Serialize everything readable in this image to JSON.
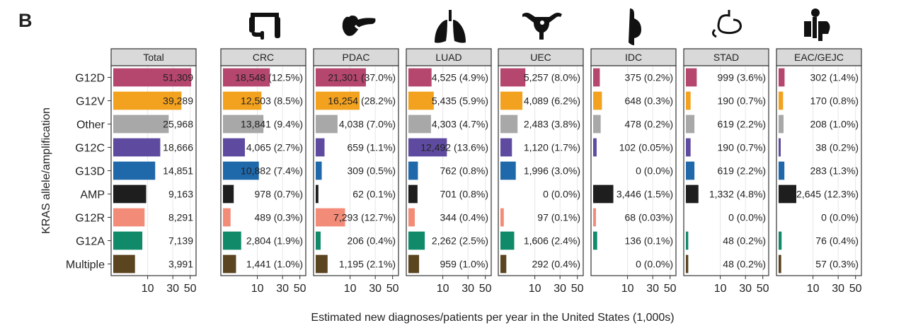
{
  "panel_letter": "B",
  "chart_data": {
    "type": "bar",
    "orientation": "horizontal",
    "xlabel": "Estimated new diagnoses/patients per year in the United States (1,000s)",
    "ylabel": "KRAS allele/amplification",
    "x_scale": "sqrt",
    "xlim": [
      0,
      55
    ],
    "x_ticks": [
      10,
      30,
      50
    ],
    "grid": true,
    "categories": [
      "G12D",
      "G12V",
      "Other",
      "G12C",
      "G13D",
      "AMP",
      "G12R",
      "G12A",
      "Multiple"
    ],
    "category_colors": [
      "#B5466E",
      "#F3A21F",
      "#A8A8A8",
      "#5E4BA0",
      "#1F68AA",
      "#1E1E1E",
      "#F28B78",
      "#118A6A",
      "#5B4420"
    ],
    "panels": [
      {
        "name": "Total",
        "icon": "",
        "values": [
          51.309,
          39.289,
          25.968,
          18.666,
          14.851,
          9.163,
          8.291,
          7.139,
          3.991
        ],
        "labels": [
          "51,309",
          "39,289",
          "25,968",
          "18,666",
          "14,851",
          "9,163",
          "8,291",
          "7,139",
          "3,991"
        ]
      },
      {
        "name": "CRC",
        "icon": "colon-icon",
        "values": [
          18.548,
          12.503,
          13.841,
          4.065,
          10.882,
          0.978,
          0.489,
          2.804,
          1.441
        ],
        "labels": [
          "18,548 (12.5%)",
          "12,503 (8.5%)",
          "13,841 (9.4%)",
          "4,065 (2.7%)",
          "10,882 (7.4%)",
          "978 (0.7%)",
          "489 (0.3%)",
          "2,804 (1.9%)",
          "1,441 (1.0%)"
        ]
      },
      {
        "name": "PDAC",
        "icon": "pancreas-icon",
        "values": [
          21.301,
          16.254,
          4.038,
          0.659,
          0.309,
          0.062,
          7.293,
          0.206,
          1.195
        ],
        "labels": [
          "21,301 (37.0%)",
          "16,254 (28.2%)",
          "4,038 (7.0%)",
          "659 (1.1%)",
          "309 (0.5%)",
          "62 (0.1%)",
          "7,293 (12.7%)",
          "206 (0.4%)",
          "1,195 (2.1%)"
        ]
      },
      {
        "name": "LUAD",
        "icon": "lungs-icon",
        "values": [
          4.525,
          5.435,
          4.303,
          12.492,
          0.762,
          0.701,
          0.344,
          2.262,
          0.959
        ],
        "labels": [
          "4,525 (4.9%)",
          "5,435 (5.9%)",
          "4,303 (4.7%)",
          "12,492 (13.6%)",
          "762 (0.8%)",
          "701 (0.8%)",
          "344 (0.4%)",
          "2,262 (2.5%)",
          "959 (1.0%)"
        ]
      },
      {
        "name": "UEC",
        "icon": "uterus-icon",
        "values": [
          5.257,
          4.089,
          2.483,
          1.12,
          1.996,
          0,
          0.097,
          1.606,
          0.292
        ],
        "labels": [
          "5,257 (8.0%)",
          "4,089 (6.2%)",
          "2,483 (3.8%)",
          "1,120 (1.7%)",
          "1,996 (3.0%)",
          "0 (0.0%)",
          "97 (0.1%)",
          "1,606 (2.4%)",
          "292 (0.4%)"
        ]
      },
      {
        "name": "IDC",
        "icon": "breast-icon",
        "values": [
          0.375,
          0.648,
          0.478,
          0.102,
          0,
          3.446,
          0.068,
          0.136,
          0
        ],
        "labels": [
          "375 (0.2%)",
          "648 (0.3%)",
          "478 (0.2%)",
          "102 (0.05%)",
          "0 (0.0%)",
          "3,446 (1.5%)",
          "68 (0.03%)",
          "136 (0.1%)",
          "0 (0.0%)"
        ]
      },
      {
        "name": "STAD",
        "icon": "stomach-icon",
        "values": [
          0.999,
          0.19,
          0.619,
          0.19,
          0.619,
          1.332,
          0,
          0.048,
          0.048
        ],
        "labels": [
          "999 (3.6%)",
          "190 (0.7%)",
          "619 (2.2%)",
          "190 (0.7%)",
          "619 (2.2%)",
          "1,332 (4.8%)",
          "0 (0.0%)",
          "48 (0.2%)",
          "48 (0.2%)"
        ]
      },
      {
        "name": "EAC/GEJC",
        "icon": "esophagus-icon",
        "values": [
          0.302,
          0.17,
          0.208,
          0.038,
          0.283,
          2.645,
          0,
          0.076,
          0.057
        ],
        "labels": [
          "302 (1.4%)",
          "170 (0.8%)",
          "208 (1.0%)",
          "38 (0.2%)",
          "283 (1.3%)",
          "2,645 (12.3%)",
          "0 (0.0%)",
          "76 (0.4%)",
          "57 (0.3%)"
        ]
      }
    ]
  }
}
